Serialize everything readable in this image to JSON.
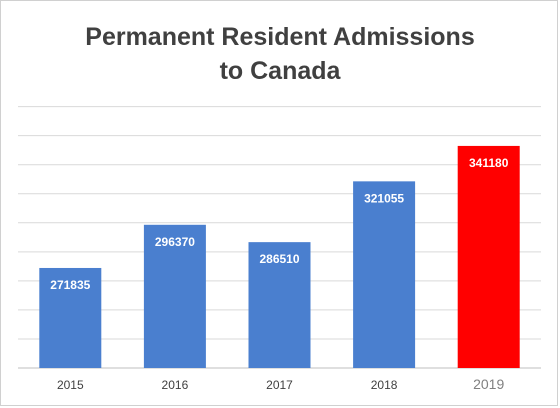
{
  "chart_data": {
    "type": "bar",
    "title_lines": [
      "Permanent Resident Admissions",
      "to Canada"
    ],
    "xlabel": "",
    "ylabel": "",
    "categories": [
      "2015",
      "2016",
      "2017",
      "2018",
      "2019"
    ],
    "values": [
      271835,
      296370,
      286510,
      321055,
      341180
    ],
    "ylim": [
      215000,
      365000
    ],
    "gridline_step": 16500,
    "grid": true,
    "legend": "none",
    "colors": {
      "bar": "#4a7fcf",
      "highlight_bar": "#ff0000",
      "grid": "#d9d9d9",
      "axis": "#bfbfbf"
    },
    "highlight_category": "2019"
  }
}
